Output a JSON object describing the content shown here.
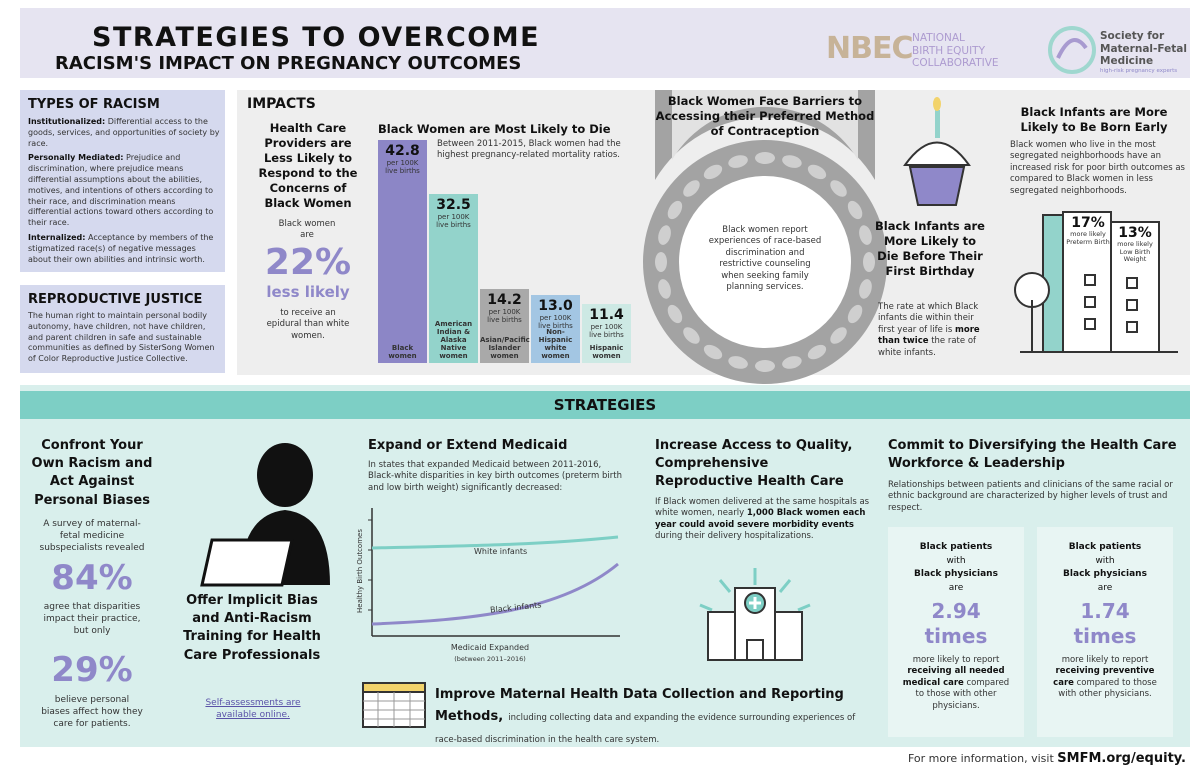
{
  "header": {
    "title": "STRATEGIES TO OVERCOME",
    "subtitle": "RACISM'S IMPACT ON PREGNANCY OUTCOMES",
    "nbec_mark": "NBEC",
    "nbec_name": [
      "NATIONAL",
      "BIRTH EQUITY",
      "COLLABORATIVE"
    ],
    "smfm_name": [
      "Society for",
      "Maternal-Fetal",
      "Medicine"
    ],
    "smfm_tagline": "high-risk pregnancy experts"
  },
  "types_of_racism": {
    "title": "TYPES OF RACISM",
    "items": [
      {
        "term": "Institutionalized:",
        "text": "Differential access to the goods, services, and opportunities of society by race."
      },
      {
        "term": "Personally Mediated:",
        "text": "Prejudice and discrimination, where prejudice means differential assumptions about the abilities, motives, and intentions of others according to their race, and discrimination means differential actions toward others according to their race."
      },
      {
        "term": "Internalized:",
        "text": "Acceptance by members of the stigmatized race(s) of negative messages about their own abilities and intrinsic worth."
      }
    ]
  },
  "reproductive_justice": {
    "title": "REPRODUCTIVE JUSTICE",
    "text": "The human right to maintain personal bodily autonomy, have children, not have children, and parent children in safe and sustainable communities as defined by SisterSong Women of Color Reproductive Justice Collective."
  },
  "impacts": {
    "title": "IMPACTS",
    "providers": {
      "title": "Health Care Providers are Less Likely to Respond to the Concerns of Black Women",
      "lead": "Black women are",
      "stat": "22%",
      "stat_label": "less likely",
      "text": "to receive an epidural than white women."
    },
    "mortality": {
      "title": "Black Women are Most Likely to Die",
      "note": "Between 2011-2015, Black women had the highest pregnancy-related mortality ratios.",
      "unit": "per 100K live births",
      "groups": [
        "Black women",
        "American Indian & Alaska Native women",
        "Asian/Pacific Islander women",
        "Non-Hispanic white women",
        "Hispanic women"
      ],
      "values": [
        42.8,
        32.5,
        14.2,
        13.0,
        11.4
      ],
      "value_labels": [
        "42.8",
        "32.5",
        "14.2",
        "13.0",
        "11.4"
      ],
      "colors": [
        "#8c86c6",
        "#93d3cb",
        "#a9a9a9",
        "#a3c6e3",
        "#cde9e4"
      ]
    },
    "contraception": {
      "title": "Black Women Face Barriers to Accessing their Preferred Method of Contraception",
      "text": "Black women report experiences of race-based discrimination and restrictive counseling when seeking family planning services."
    },
    "infant_death": {
      "title": "Black Infants are More Likely to Die Before Their First Birthday",
      "text_before": "The rate at which Black infants die within their first year of life is",
      "bold": "more than twice",
      "text_after": "the rate of white infants."
    },
    "born_early": {
      "title": "Black Infants are More Likely to Be Born Early",
      "text": "Black women who live in the most segregated neighborhoods have an increased risk for poor birth outcomes as compared to Black women in less segregated neighborhoods.",
      "stats": [
        {
          "value": "17%",
          "label": "more likely Preterm Birth"
        },
        {
          "value": "13%",
          "label": "more likely Low Birth Weight"
        }
      ]
    }
  },
  "strategies": {
    "title": "STRATEGIES",
    "confront": {
      "title": "Confront Your Own Racism and Act Against Personal Biases",
      "lead": "A survey of maternal-fetal medicine subspecialists revealed",
      "stat1": "84%",
      "text1": "agree that disparities impact their practice, but only",
      "stat2": "29%",
      "text2": "believe personal biases affect how they care for patients."
    },
    "implicit_bias": {
      "title": "Offer Implicit Bias and Anti-Racism Training for Health Care Professionals",
      "link": "Self-assessments are available online."
    },
    "medicaid": {
      "title": "Expand or Extend Medicaid",
      "text": "In states that expanded Medicaid between 2011-2016, Black-white disparities in key birth outcomes (preterm birth and low birth weight) significantly decreased:",
      "y_label": "Healthy Birth Outcomes",
      "series": [
        "White infants",
        "Black infants"
      ],
      "x_label": "Medicaid Expanded",
      "x_note": "(between 2011–2016)"
    },
    "access": {
      "title": "Increase Access to Quality, Comprehensive Reproductive Health Care",
      "text_before": "If Black women delivered at the same hospitals as white women, nearly",
      "bold": "1,000 Black women each year could avoid severe morbidity events",
      "text_after": "during their delivery hospitalizations."
    },
    "diversify": {
      "title": "Commit to Diversifying the Health Care Workforce & Leadership",
      "text": "Relationships between patients and clinicians of the same racial or ethnic background are characterized by higher levels of trust and respect.",
      "cards": [
        {
          "lead": [
            "Black patients",
            "with",
            "Black physicians",
            "are"
          ],
          "stat": "2.94 times",
          "text_before": "more likely to report",
          "bold": "receiving all needed medical care",
          "text_after": "compared to those with other physicians."
        },
        {
          "lead": [
            "Black patients",
            "with",
            "Black physicians",
            "are"
          ],
          "stat": "1.74 times",
          "text_before": "more likely to report",
          "bold": "receiving preventive care",
          "text_after": "compared to those with other physicians."
        }
      ]
    },
    "data_collection": {
      "title": "Improve Maternal Health Data Collection and Reporting Methods,",
      "text": "including collecting data and expanding the evidence surrounding experiences of race-based discrimination in the health care system."
    }
  },
  "footer": {
    "text": "For more information, visit",
    "link": "SMFM.org/equity."
  }
}
